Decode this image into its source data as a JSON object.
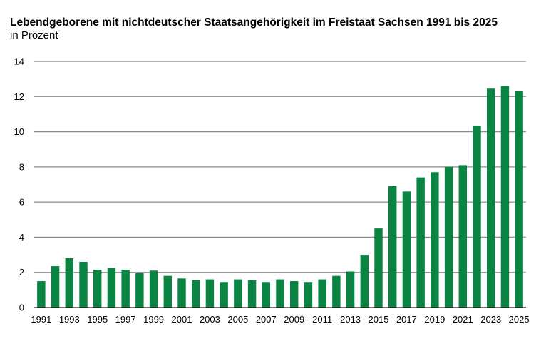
{
  "chart_data": {
    "type": "bar",
    "title": "Lebendgeborene mit nichtdeutscher Staatsangehörigkeit im Freistaat Sachsen 1991 bis 2025",
    "subtitle": "in Prozent",
    "xlabel": "",
    "ylabel": "",
    "ylim": [
      0,
      14
    ],
    "yticks": [
      "0",
      "2",
      "4",
      "6",
      "8",
      "10",
      "12",
      "14"
    ],
    "grid": "horizontal",
    "legend": "none",
    "bar_color": "#0a8442",
    "grid_color": "#8c8c8c",
    "categories": [
      "1991",
      "1992",
      "1993",
      "1994",
      "1995",
      "1996",
      "1997",
      "1998",
      "1999",
      "2000",
      "2001",
      "2002",
      "2003",
      "2004",
      "2005",
      "2006",
      "2007",
      "2008",
      "2009",
      "2010",
      "2011",
      "2012",
      "2013",
      "2014",
      "2015",
      "2016",
      "2017",
      "2018",
      "2019",
      "2020",
      "2021",
      "2022",
      "2023",
      "2024",
      "2025"
    ],
    "xtick_labels": [
      "1991",
      "",
      "1993",
      "",
      "1995",
      "",
      "1997",
      "",
      "1999",
      "",
      "2001",
      "",
      "2003",
      "",
      "2005",
      "",
      "2007",
      "",
      "2009",
      "",
      "2011",
      "",
      "2013",
      "",
      "2015",
      "",
      "2017",
      "",
      "2019",
      "",
      "2021",
      "",
      "2023",
      "",
      "2025"
    ],
    "values": [
      1.5,
      2.35,
      2.8,
      2.6,
      2.15,
      2.25,
      2.15,
      1.95,
      2.1,
      1.8,
      1.65,
      1.55,
      1.6,
      1.45,
      1.6,
      1.55,
      1.45,
      1.6,
      1.5,
      1.45,
      1.6,
      1.8,
      2.05,
      3.0,
      4.5,
      6.9,
      6.6,
      7.4,
      7.7,
      8.0,
      8.1,
      10.35,
      12.45,
      12.6,
      12.3
    ]
  }
}
